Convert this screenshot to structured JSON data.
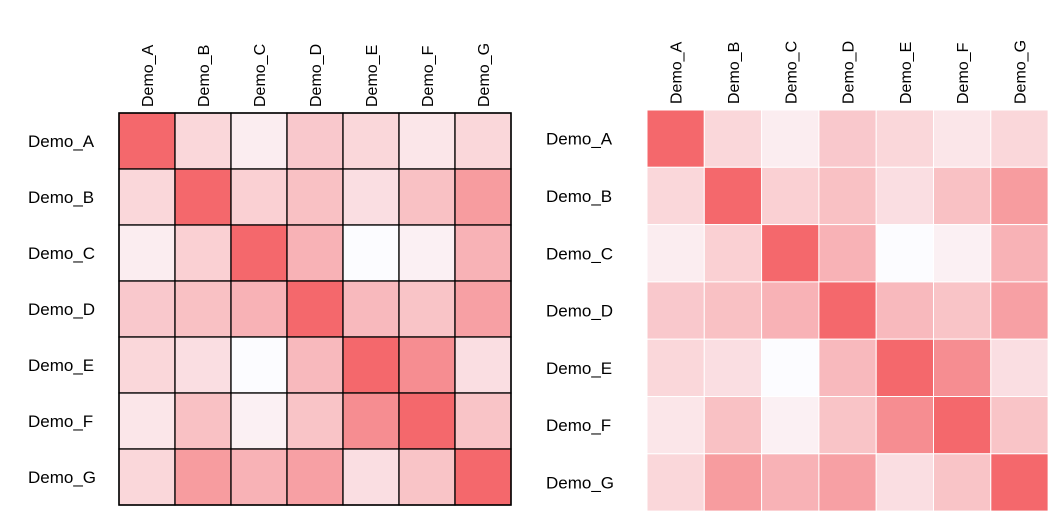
{
  "chart_data": [
    {
      "type": "heatmap",
      "style": "bordered",
      "row_labels": [
        "Demo_A",
        "Demo_B",
        "Demo_C",
        "Demo_D",
        "Demo_E",
        "Demo_F",
        "Demo_G"
      ],
      "col_labels": [
        "Demo_A",
        "Demo_B",
        "Demo_C",
        "Demo_D",
        "Demo_E",
        "Demo_F",
        "Demo_G"
      ],
      "values": [
        [
          1.0,
          0.25,
          0.1,
          0.35,
          0.25,
          0.15,
          0.25
        ],
        [
          0.25,
          1.0,
          0.3,
          0.4,
          0.2,
          0.4,
          0.65
        ],
        [
          0.1,
          0.3,
          1.0,
          0.5,
          0.0,
          0.08,
          0.5
        ],
        [
          0.35,
          0.4,
          0.5,
          1.0,
          0.45,
          0.38,
          0.62
        ],
        [
          0.25,
          0.2,
          0.0,
          0.45,
          1.0,
          0.75,
          0.2
        ],
        [
          0.15,
          0.4,
          0.08,
          0.38,
          0.75,
          1.0,
          0.38
        ],
        [
          0.25,
          0.65,
          0.5,
          0.62,
          0.2,
          0.38,
          1.0
        ]
      ],
      "color_low": "#fcfcff",
      "color_high": "#f4686c",
      "grid_color": "#000000"
    },
    {
      "type": "heatmap",
      "style": "white-gridlines",
      "row_labels": [
        "Demo_A",
        "Demo_B",
        "Demo_C",
        "Demo_D",
        "Demo_E",
        "Demo_F",
        "Demo_G"
      ],
      "col_labels": [
        "Demo_A",
        "Demo_B",
        "Demo_C",
        "Demo_D",
        "Demo_E",
        "Demo_F",
        "Demo_G"
      ],
      "values": [
        [
          1.0,
          0.25,
          0.1,
          0.35,
          0.25,
          0.15,
          0.25
        ],
        [
          0.25,
          1.0,
          0.3,
          0.4,
          0.2,
          0.4,
          0.65
        ],
        [
          0.1,
          0.3,
          1.0,
          0.5,
          0.0,
          0.08,
          0.5
        ],
        [
          0.35,
          0.4,
          0.5,
          1.0,
          0.45,
          0.38,
          0.62
        ],
        [
          0.25,
          0.2,
          0.0,
          0.45,
          1.0,
          0.75,
          0.2
        ],
        [
          0.15,
          0.4,
          0.08,
          0.38,
          0.75,
          1.0,
          0.38
        ],
        [
          0.25,
          0.65,
          0.5,
          0.62,
          0.2,
          0.38,
          1.0
        ]
      ],
      "color_low": "#fcfcff",
      "color_high": "#f4686c",
      "grid_color": "#ffffff"
    }
  ]
}
